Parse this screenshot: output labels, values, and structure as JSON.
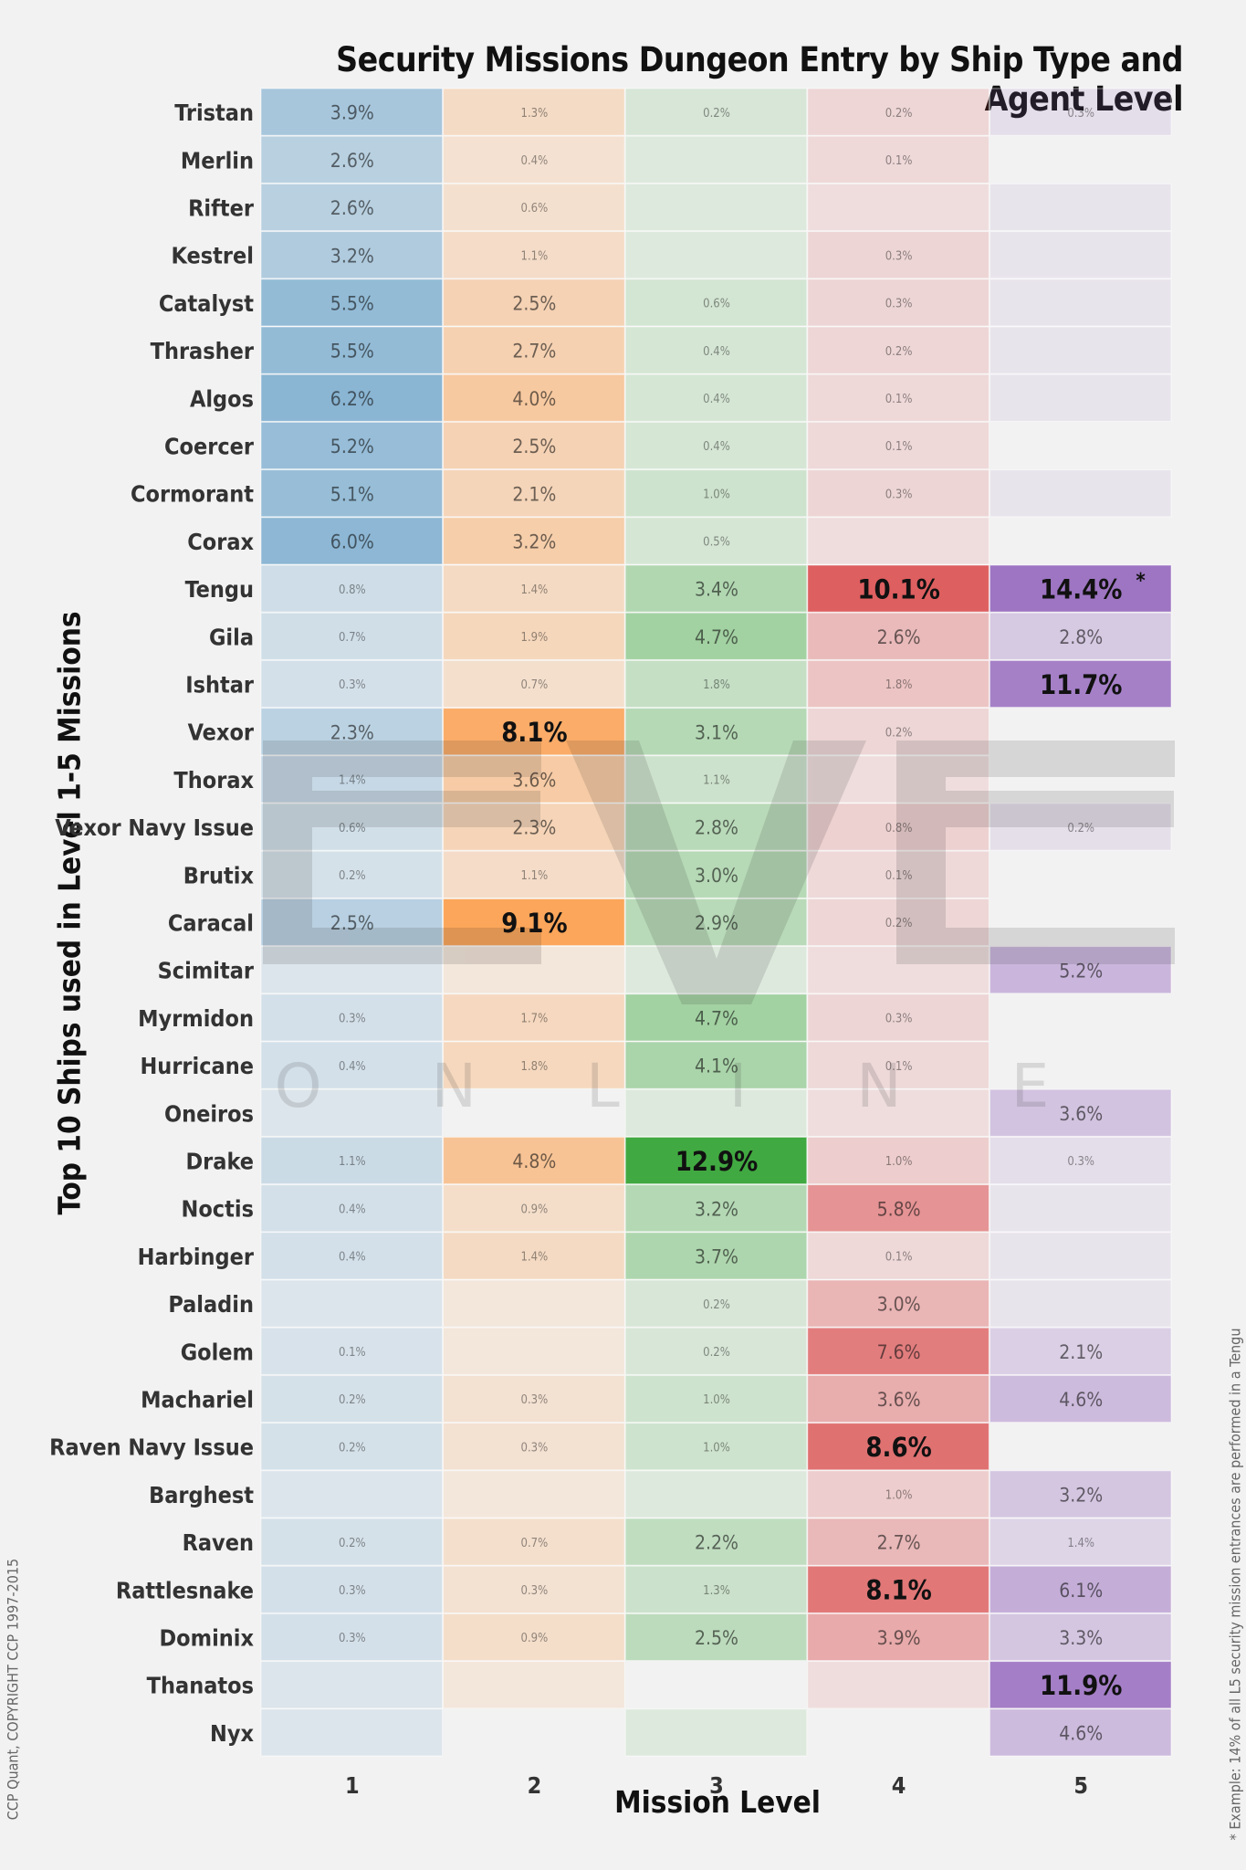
{
  "colors": {
    "1": "#1f77b4",
    "2": "#ff7f0e",
    "3": "#2ca02c",
    "4": "#d62728",
    "5": "#9467bd"
  },
  "watermark": {
    "logo_text": "EVE",
    "subtext": "ONLINE"
  },
  "copyright": "CCP Quant, COPYRIGHT CCP 1997-2015",
  "footnote": "* Example: 14% of all L5 security mission entrances are performed in a Tengu",
  "chart_data": {
    "type": "heatmap",
    "title": "Security Missions Dungeon Entry by Ship Type and Agent Level",
    "xlabel": "Mission Level",
    "ylabel": "Top 10 Ships used in Level 1-5 Missions",
    "x": [
      "1",
      "2",
      "3",
      "4",
      "5"
    ],
    "annotations": [
      {
        "row": "Tengu",
        "level": "5",
        "text": "*"
      }
    ],
    "rows": [
      {
        "ship": "Tristan",
        "values": [
          3.9,
          1.3,
          0.2,
          0.2,
          0.3
        ]
      },
      {
        "ship": "Merlin",
        "values": [
          2.6,
          0.4,
          null,
          0.1,
          null
        ]
      },
      {
        "ship": "Rifter",
        "values": [
          2.6,
          0.6,
          null,
          null,
          null
        ]
      },
      {
        "ship": "Kestrel",
        "values": [
          3.2,
          1.1,
          null,
          0.3,
          null
        ]
      },
      {
        "ship": "Catalyst",
        "values": [
          5.5,
          2.5,
          0.6,
          0.3,
          null
        ]
      },
      {
        "ship": "Thrasher",
        "values": [
          5.5,
          2.7,
          0.4,
          0.2,
          null
        ]
      },
      {
        "ship": "Algos",
        "values": [
          6.2,
          4.0,
          0.4,
          0.1,
          null
        ]
      },
      {
        "ship": "Coercer",
        "values": [
          5.2,
          2.5,
          0.4,
          0.1,
          null
        ]
      },
      {
        "ship": "Cormorant",
        "values": [
          5.1,
          2.1,
          1.0,
          0.3,
          null
        ]
      },
      {
        "ship": "Corax",
        "values": [
          6.0,
          3.2,
          0.5,
          null,
          null
        ]
      },
      {
        "ship": "Tengu",
        "values": [
          0.8,
          1.4,
          3.4,
          10.1,
          14.4
        ]
      },
      {
        "ship": "Gila",
        "values": [
          0.7,
          1.9,
          4.7,
          2.6,
          2.8
        ]
      },
      {
        "ship": "Ishtar",
        "values": [
          0.3,
          0.7,
          1.8,
          1.8,
          11.7
        ]
      },
      {
        "ship": "Vexor",
        "values": [
          2.3,
          8.1,
          3.1,
          0.2,
          null
        ]
      },
      {
        "ship": "Thorax",
        "values": [
          1.4,
          3.6,
          1.1,
          null,
          null
        ]
      },
      {
        "ship": "Vexor Navy Issue",
        "values": [
          0.6,
          2.3,
          2.8,
          0.8,
          0.2
        ]
      },
      {
        "ship": "Brutix",
        "values": [
          0.2,
          1.1,
          3.0,
          0.1,
          null
        ]
      },
      {
        "ship": "Caracal",
        "values": [
          2.5,
          9.1,
          2.9,
          0.2,
          null
        ]
      },
      {
        "ship": "Scimitar",
        "values": [
          null,
          null,
          null,
          null,
          5.2
        ]
      },
      {
        "ship": "Myrmidon",
        "values": [
          0.3,
          1.7,
          4.7,
          0.3,
          null
        ]
      },
      {
        "ship": "Hurricane",
        "values": [
          0.4,
          1.8,
          4.1,
          0.1,
          null
        ]
      },
      {
        "ship": "Oneiros",
        "values": [
          null,
          null,
          null,
          null,
          3.6
        ]
      },
      {
        "ship": "Drake",
        "values": [
          1.1,
          4.8,
          12.9,
          1.0,
          0.3
        ]
      },
      {
        "ship": "Noctis",
        "values": [
          0.4,
          0.9,
          3.2,
          5.8,
          null
        ]
      },
      {
        "ship": "Harbinger",
        "values": [
          0.4,
          1.4,
          3.7,
          0.1,
          null
        ]
      },
      {
        "ship": "Paladin",
        "values": [
          null,
          null,
          0.2,
          3.0,
          null
        ]
      },
      {
        "ship": "Golem",
        "values": [
          0.1,
          null,
          0.2,
          7.6,
          2.1
        ]
      },
      {
        "ship": "Machariel",
        "values": [
          0.2,
          0.3,
          1.0,
          3.6,
          4.6
        ]
      },
      {
        "ship": "Raven Navy Issue",
        "values": [
          0.2,
          0.3,
          1.0,
          8.6,
          null
        ]
      },
      {
        "ship": "Barghest",
        "values": [
          null,
          null,
          null,
          1.0,
          3.2
        ]
      },
      {
        "ship": "Raven",
        "values": [
          0.2,
          0.7,
          2.2,
          2.7,
          1.4
        ]
      },
      {
        "ship": "Rattlesnake",
        "values": [
          0.3,
          0.3,
          1.3,
          8.1,
          6.1
        ]
      },
      {
        "ship": "Dominix",
        "values": [
          0.3,
          0.9,
          2.5,
          3.9,
          3.3
        ]
      },
      {
        "ship": "Thanatos",
        "values": [
          null,
          null,
          null,
          null,
          11.9
        ]
      },
      {
        "ship": "Nyx",
        "values": [
          null,
          null,
          null,
          null,
          4.6
        ]
      }
    ],
    "background_cells": {
      "1": [
        "Tristan",
        "Merlin",
        "Rifter",
        "Kestrel",
        "Catalyst",
        "Thrasher",
        "Algos",
        "Coercer",
        "Cormorant",
        "Corax",
        "Tengu",
        "Gila",
        "Ishtar",
        "Vexor",
        "Thorax",
        "Vexor Navy Issue",
        "Brutix",
        "Caracal",
        "Scimitar",
        "Myrmidon",
        "Hurricane",
        "Oneiros",
        "Drake",
        "Noctis",
        "Harbinger",
        "Paladin",
        "Golem",
        "Machariel",
        "Raven Navy Issue",
        "Barghest",
        "Raven",
        "Rattlesnake",
        "Dominix",
        "Thanatos",
        "Nyx"
      ],
      "2": [
        "Tristan",
        "Merlin",
        "Rifter",
        "Kestrel",
        "Catalyst",
        "Thrasher",
        "Algos",
        "Coercer",
        "Cormorant",
        "Corax",
        "Tengu",
        "Gila",
        "Ishtar",
        "Vexor",
        "Thorax",
        "Vexor Navy Issue",
        "Brutix",
        "Caracal",
        "Scimitar",
        "Myrmidon",
        "Hurricane",
        "Drake",
        "Noctis",
        "Harbinger",
        "Paladin",
        "Golem",
        "Machariel",
        "Raven Navy Issue",
        "Barghest",
        "Raven",
        "Rattlesnake",
        "Dominix",
        "Thanatos"
      ],
      "3": [
        "Tristan",
        "Merlin",
        "Rifter",
        "Kestrel",
        "Catalyst",
        "Thrasher",
        "Algos",
        "Coercer",
        "Cormorant",
        "Corax",
        "Tengu",
        "Gila",
        "Ishtar",
        "Vexor",
        "Thorax",
        "Vexor Navy Issue",
        "Brutix",
        "Caracal",
        "Scimitar",
        "Myrmidon",
        "Hurricane",
        "Oneiros",
        "Drake",
        "Noctis",
        "Harbinger",
        "Paladin",
        "Golem",
        "Machariel",
        "Raven Navy Issue",
        "Barghest",
        "Raven",
        "Rattlesnake",
        "Dominix",
        "Nyx"
      ],
      "4": [
        "Tristan",
        "Merlin",
        "Rifter",
        "Kestrel",
        "Catalyst",
        "Thrasher",
        "Algos",
        "Coercer",
        "Cormorant",
        "Corax",
        "Tengu",
        "Gila",
        "Ishtar",
        "Vexor",
        "Thorax",
        "Vexor Navy Issue",
        "Brutix",
        "Caracal",
        "Scimitar",
        "Myrmidon",
        "Hurricane",
        "Oneiros",
        "Drake",
        "Noctis",
        "Harbinger",
        "Paladin",
        "Golem",
        "Machariel",
        "Raven Navy Issue",
        "Barghest",
        "Raven",
        "Rattlesnake",
        "Dominix",
        "Thanatos"
      ],
      "5": [
        "Tristan",
        "Rifter",
        "Kestrel",
        "Catalyst",
        "Thrasher",
        "Algos",
        "Cormorant",
        "Tengu",
        "Gila",
        "Ishtar",
        "Vexor Navy Issue",
        "Scimitar",
        "Oneiros",
        "Drake",
        "Noctis",
        "Harbinger",
        "Paladin",
        "Golem",
        "Machariel",
        "Barghest",
        "Raven",
        "Rattlesnake",
        "Dominix",
        "Thanatos",
        "Nyx"
      ]
    },
    "grid": false,
    "legend": "none"
  }
}
